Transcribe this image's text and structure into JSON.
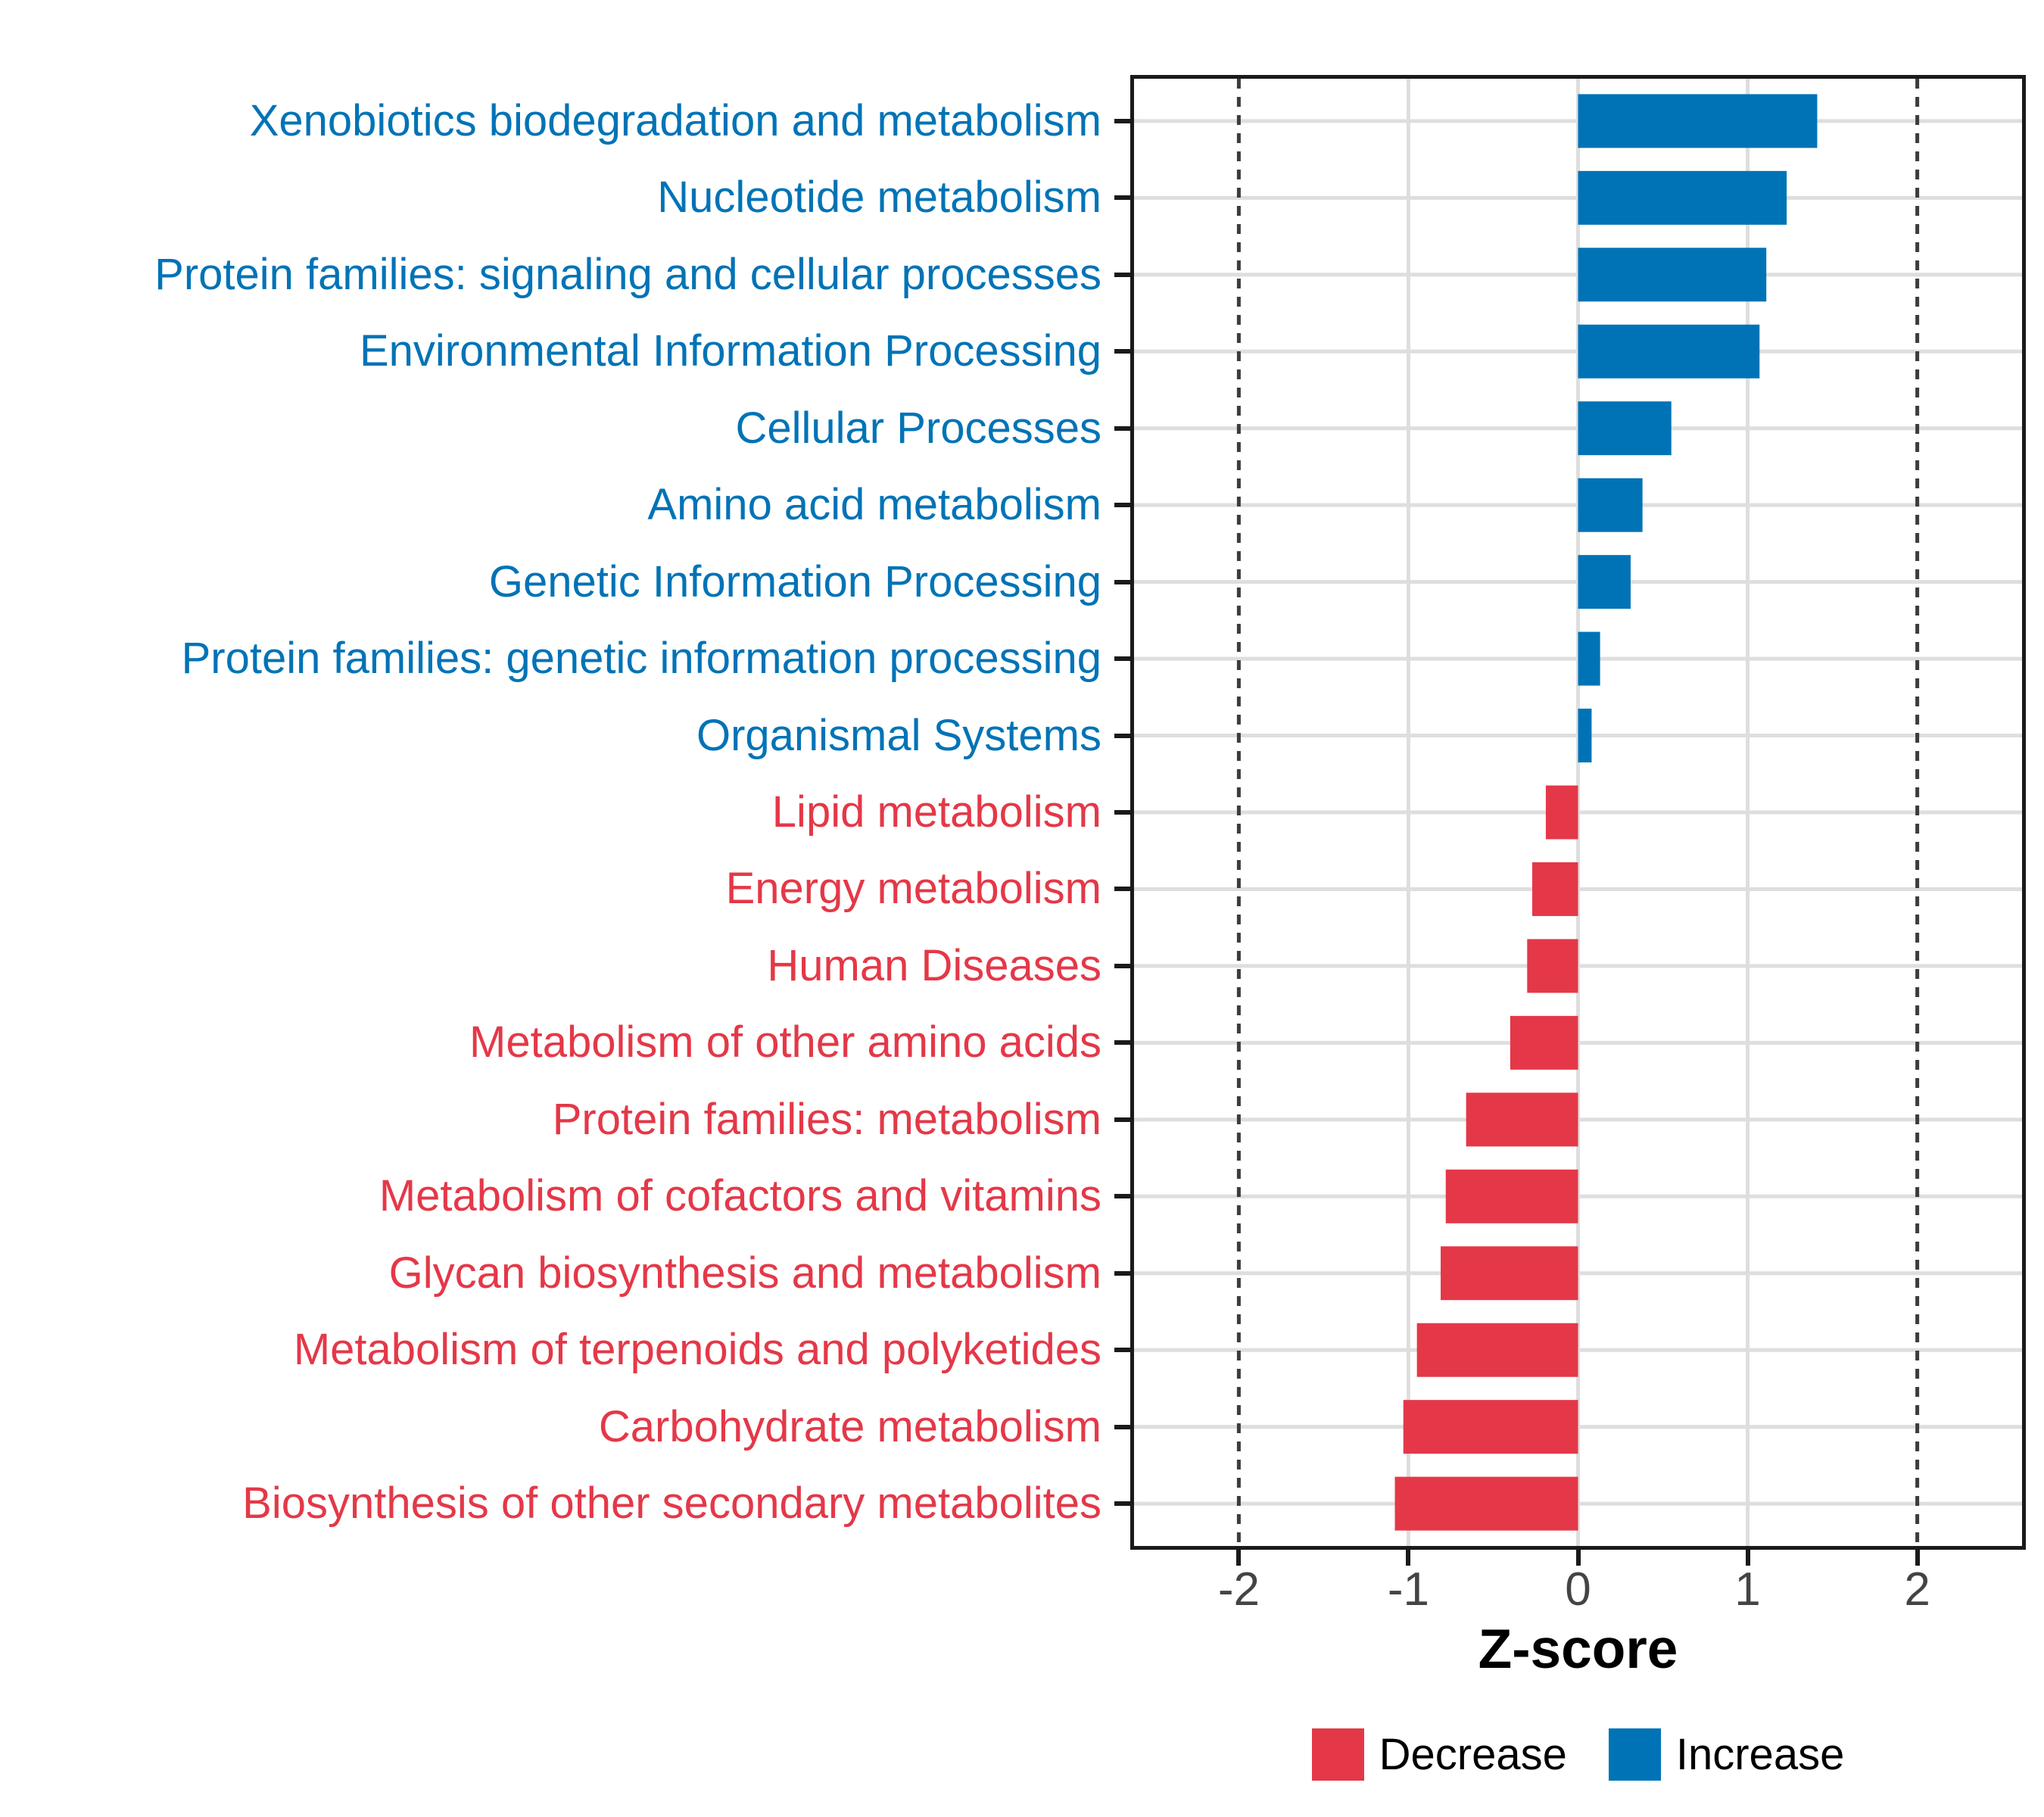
{
  "chart_data": {
    "type": "bar",
    "orientation": "horizontal",
    "title": "",
    "xlabel": "Z-score",
    "ylabel": "",
    "xlim": [
      -2.64,
      2.64
    ],
    "x_ticks": [
      -2,
      -1,
      0,
      1,
      2
    ],
    "grid": {
      "x_solid": [
        -1,
        0,
        1
      ],
      "y_major": "per-category"
    },
    "reference_lines": {
      "x": [
        -2,
        2
      ],
      "style": "dashed"
    },
    "categories": [
      "Xenobiotics biodegradation and metabolism",
      "Nucleotide metabolism",
      "Protein families: signaling and cellular processes",
      "Environmental Information Processing",
      "Cellular Processes",
      "Amino acid metabolism",
      "Genetic Information Processing",
      "Protein families: genetic information processing",
      "Organismal Systems",
      "Lipid metabolism",
      "Energy metabolism",
      "Human Diseases",
      "Metabolism of other amino acids",
      "Protein families: metabolism",
      "Metabolism of cofactors and vitamins",
      "Glycan biosynthesis and metabolism",
      "Metabolism of terpenoids and polyketides",
      "Carbohydrate metabolism",
      "Biosynthesis of other secondary metabolites"
    ],
    "values": [
      1.41,
      1.23,
      1.11,
      1.07,
      0.55,
      0.38,
      0.31,
      0.13,
      0.08,
      -0.19,
      -0.27,
      -0.3,
      -0.4,
      -0.66,
      -0.78,
      -0.81,
      -0.95,
      -1.03,
      -1.08
    ],
    "groups": [
      "Increase",
      "Increase",
      "Increase",
      "Increase",
      "Increase",
      "Increase",
      "Increase",
      "Increase",
      "Increase",
      "Decrease",
      "Decrease",
      "Decrease",
      "Decrease",
      "Decrease",
      "Decrease",
      "Decrease",
      "Decrease",
      "Decrease",
      "Decrease"
    ],
    "colors": {
      "Increase": "#0073B6",
      "Decrease": "#E43848"
    },
    "grid_color": "#DEDEDE",
    "reference_line_color": "#3C3C3C",
    "legend": {
      "position": "bottom-center",
      "entries": [
        {
          "label": "Decrease",
          "group": "Decrease",
          "color": "#E43848"
        },
        {
          "label": "Increase",
          "group": "Increase",
          "color": "#0073B6"
        }
      ]
    }
  }
}
